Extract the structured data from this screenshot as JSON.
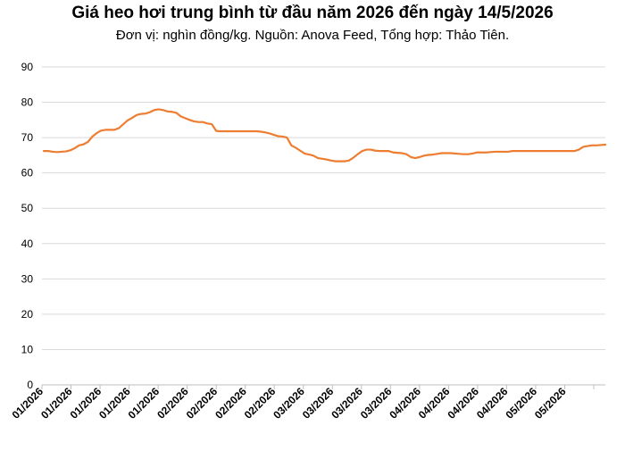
{
  "chart_data": {
    "type": "line",
    "title": "Giá heo hơi trung bình từ đầu năm 2026 đến ngày 14/5/2026",
    "subtitle": "Đơn vị: nghìn đồng/kg. Nguồn: Anova Feed, Tổng hợp: Thảo Tiên.",
    "xlabel": "",
    "ylabel": "",
    "ylim": [
      0,
      90
    ],
    "yticks": [
      "0",
      "10",
      "20",
      "30",
      "40",
      "50",
      "60",
      "70",
      "80",
      "90"
    ],
    "grid": true,
    "legend": "none",
    "line_color": "#ED7D31",
    "xtick_labels": [
      "01/2026",
      "01/2026",
      "01/2026",
      "01/2026",
      "01/2026",
      "02/2026",
      "02/2026",
      "02/2026",
      "02/2026",
      "03/2026",
      "03/2026",
      "03/2026",
      "03/2026",
      "04/2026",
      "04/2026",
      "04/2026",
      "04/2026",
      "05/2026",
      "05/2026"
    ],
    "series": [
      {
        "values": [
          66.2,
          66.2,
          66.0,
          65.9,
          66.0,
          66.1,
          66.4,
          67.0,
          67.8,
          68.1,
          68.8,
          70.3,
          71.3,
          72.0,
          72.2,
          72.2,
          72.2,
          72.7,
          73.8,
          74.9,
          75.6,
          76.4,
          76.7,
          76.8,
          77.2,
          77.8,
          78.0,
          77.8,
          77.4,
          77.3,
          77.0,
          76.0,
          75.5,
          75.0,
          74.6,
          74.4,
          74.4,
          74.0,
          73.8,
          71.9,
          71.8,
          71.8,
          71.8,
          71.8,
          71.8,
          71.8,
          71.8,
          71.8,
          71.8,
          71.7,
          71.5,
          71.2,
          70.8,
          70.4,
          70.3,
          70.0,
          67.8,
          67.1,
          66.3,
          65.5,
          65.2,
          64.9,
          64.2,
          64.0,
          63.8,
          63.5,
          63.3,
          63.3,
          63.3,
          63.5,
          64.3,
          65.3,
          66.2,
          66.6,
          66.6,
          66.3,
          66.2,
          66.2,
          66.2,
          65.8,
          65.7,
          65.6,
          65.3,
          64.5,
          64.2,
          64.5,
          64.9,
          65.1,
          65.2,
          65.4,
          65.6,
          65.6,
          65.6,
          65.5,
          65.4,
          65.3,
          65.3,
          65.5,
          65.8,
          65.8,
          65.8,
          65.9,
          66.0,
          66.0,
          66.0,
          66.0,
          66.2,
          66.2,
          66.2,
          66.2,
          66.2,
          66.2,
          66.2,
          66.2,
          66.2,
          66.2,
          66.2,
          66.2,
          66.2,
          66.2,
          66.2,
          66.6,
          67.4,
          67.6,
          67.8,
          67.8,
          67.9,
          68.0
        ]
      }
    ]
  }
}
